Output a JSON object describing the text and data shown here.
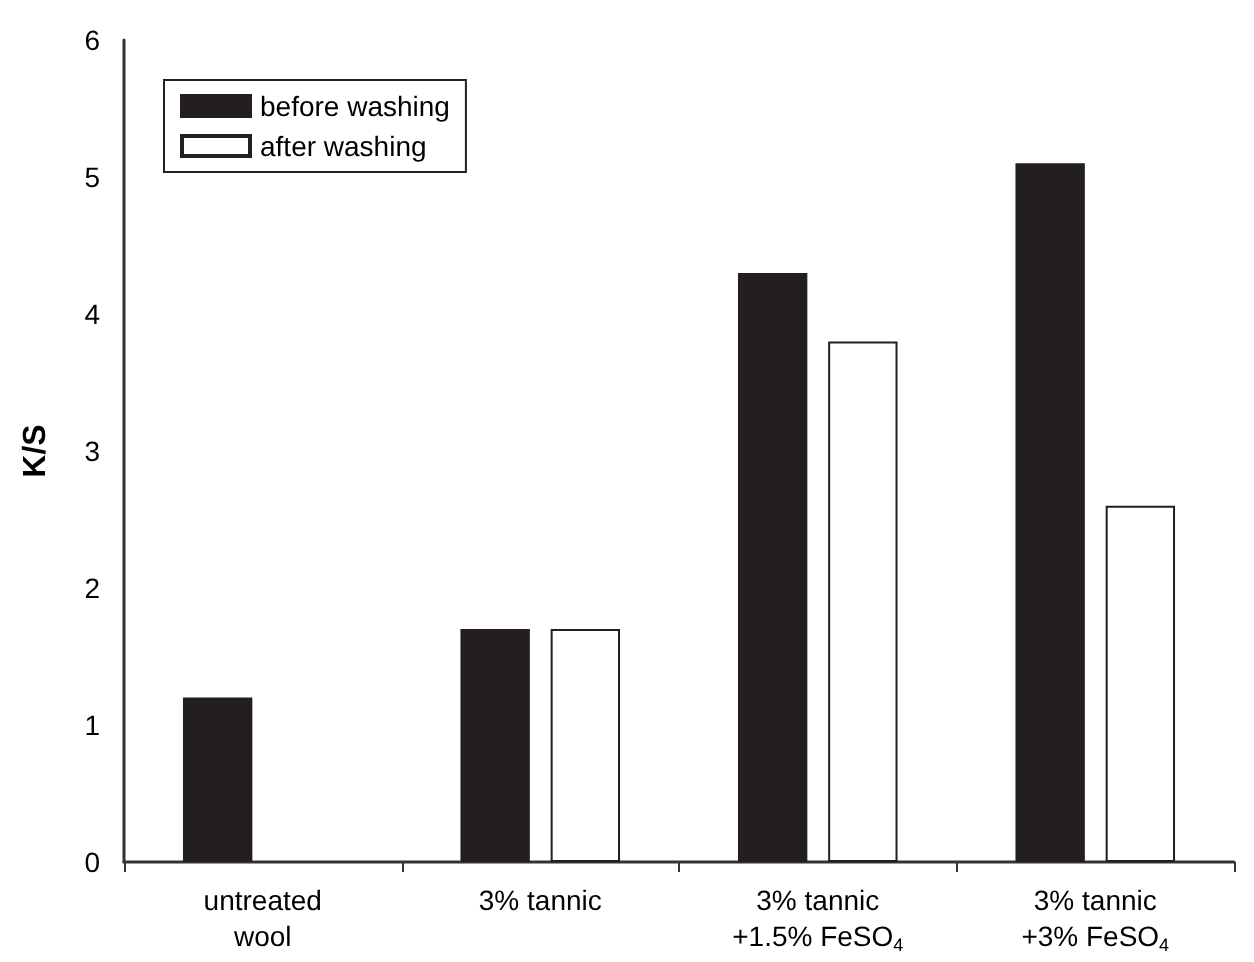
{
  "chart_data": {
    "type": "bar",
    "ylabel": "K/S",
    "categories": [
      "untreated\nwool",
      "3% tannic",
      "3% tannic\n+1.5% FeSO$_{4}$",
      "3% tannic\n+3% FeSO$_{4}$"
    ],
    "series": [
      {
        "name": "before washing",
        "color": "#231f20",
        "values": [
          1.2,
          1.7,
          4.3,
          5.1
        ]
      },
      {
        "name": "after washing",
        "color": "#ffffff",
        "values": [
          null,
          1.7,
          3.8,
          2.6
        ]
      }
    ],
    "ylim": [
      0,
      6
    ],
    "yticks": [
      0,
      1,
      2,
      3,
      4,
      5,
      6
    ],
    "grid": false,
    "legend": "top left"
  }
}
